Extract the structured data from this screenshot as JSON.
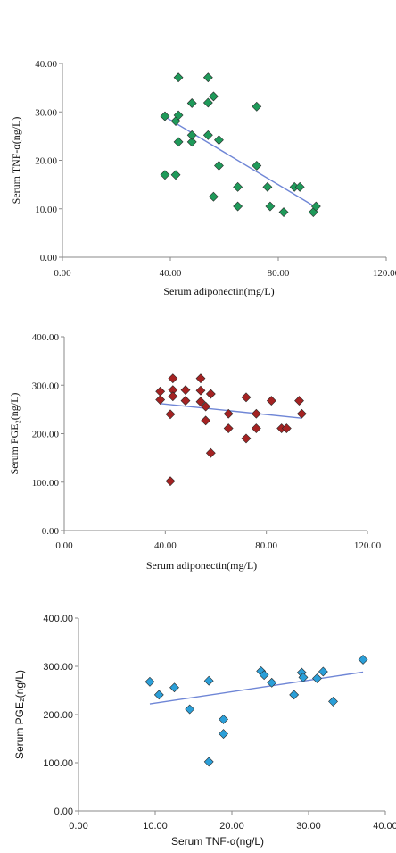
{
  "chart_data": [
    {
      "type": "scatter",
      "xlabel": "Serum adiponectin(mg/L)",
      "ylabel": "Serum TNF-α(ng/L)",
      "xlim": [
        0,
        120
      ],
      "ylim": [
        0,
        40
      ],
      "xticks": [
        "0.00",
        "40.00",
        "80.00",
        "120.00"
      ],
      "yticks": [
        "0.00",
        "10.00",
        "20.00",
        "30.00",
        "40.00"
      ],
      "grid": false,
      "marker_color": "#1f9a5a",
      "trendline_color": "#6f86d6",
      "series": [
        {
          "points": [
            [
              38,
              29.1
            ],
            [
              38,
              17
            ],
            [
              42,
              28.1
            ],
            [
              42,
              17
            ],
            [
              43,
              29.3
            ],
            [
              43,
              23.8
            ],
            [
              43,
              37.1
            ],
            [
              48,
              31.8
            ],
            [
              48,
              23.8
            ],
            [
              48,
              25.2
            ],
            [
              54,
              37.1
            ],
            [
              54,
              31.9
            ],
            [
              54,
              25.2
            ],
            [
              56,
              33.2
            ],
            [
              56,
              12.5
            ],
            [
              58,
              24.2
            ],
            [
              58,
              18.9
            ],
            [
              65,
              14.5
            ],
            [
              65,
              10.5
            ],
            [
              72,
              31.1
            ],
            [
              72,
              18.9
            ],
            [
              76,
              14.5
            ],
            [
              77,
              10.5
            ],
            [
              82,
              9.3
            ],
            [
              86,
              14.5
            ],
            [
              88,
              14.5
            ],
            [
              93,
              9.3
            ],
            [
              94,
              10.5
            ]
          ],
          "trendline": [
            [
              38,
              29.0
            ],
            [
              94,
              10.3
            ]
          ]
        }
      ]
    },
    {
      "type": "scatter",
      "xlabel": "Serum adiponectin(mg/L)",
      "ylabel": "Serum PGE₂(ng/L)",
      "xlim": [
        0,
        120
      ],
      "ylim": [
        0,
        400
      ],
      "xticks": [
        "0.00",
        "40.00",
        "80.00",
        "120.00"
      ],
      "yticks": [
        "0.00",
        "100.00",
        "200.00",
        "300.00",
        "400.00"
      ],
      "grid": false,
      "marker_color": "#a52222",
      "trendline_color": "#6f86d6",
      "series": [
        {
          "points": [
            [
              38,
              287
            ],
            [
              38,
              270
            ],
            [
              42,
              240
            ],
            [
              42,
              102
            ],
            [
              43,
              314
            ],
            [
              43,
              290
            ],
            [
              43,
              277
            ],
            [
              48,
              290
            ],
            [
              48,
              268
            ],
            [
              54,
              314
            ],
            [
              54,
              289
            ],
            [
              54,
              266
            ],
            [
              56,
              256
            ],
            [
              56,
              227
            ],
            [
              58,
              282
            ],
            [
              58,
              160
            ],
            [
              65,
              241
            ],
            [
              65,
              211
            ],
            [
              72,
              275
            ],
            [
              72,
              190
            ],
            [
              76,
              241
            ],
            [
              76,
              211
            ],
            [
              82,
              268
            ],
            [
              86,
              211
            ],
            [
              88,
              211
            ],
            [
              93,
              268
            ],
            [
              94,
              241
            ]
          ],
          "trendline": [
            [
              38,
              262
            ],
            [
              94,
              232
            ]
          ]
        }
      ]
    },
    {
      "type": "scatter",
      "xlabel": "Serum TNF-α(ng/L)",
      "ylabel": "Serum PGE₂(ng/L)",
      "xlim": [
        0,
        40
      ],
      "ylim": [
        0,
        400
      ],
      "xticks": [
        "0.00",
        "10.00",
        "20.00",
        "30.00",
        "40.00"
      ],
      "yticks": [
        "0.00",
        "100.00",
        "200.00",
        "300.00",
        "400.00"
      ],
      "grid": false,
      "marker_color": "#2b9fd8",
      "trendline_color": "#6f86d6",
      "series": [
        {
          "points": [
            [
              9.3,
              268
            ],
            [
              10.5,
              241
            ],
            [
              12.5,
              256
            ],
            [
              14.5,
              211
            ],
            [
              17,
              102
            ],
            [
              17,
              270
            ],
            [
              18.9,
              190
            ],
            [
              18.9,
              160
            ],
            [
              23.8,
              290
            ],
            [
              24.2,
              282
            ],
            [
              25.2,
              266
            ],
            [
              28.1,
              241
            ],
            [
              29.1,
              287
            ],
            [
              29.3,
              277
            ],
            [
              31.1,
              275
            ],
            [
              31.9,
              289
            ],
            [
              33.2,
              227
            ],
            [
              37.1,
              314
            ]
          ],
          "trendline": [
            [
              9.3,
              222
            ],
            [
              37.1,
              288
            ]
          ]
        }
      ]
    }
  ]
}
